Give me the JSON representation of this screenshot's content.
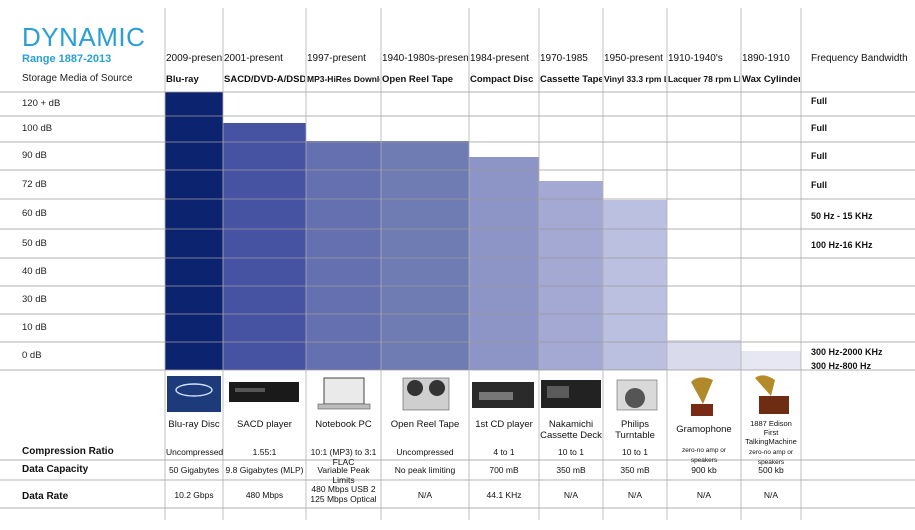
{
  "header": {
    "title": "DYNAMIC",
    "subtitle": "Range 1887-2013",
    "storage_label": "Storage Media of Source",
    "bandwidth_label": "Frequency Bandwidth"
  },
  "chart_data": {
    "type": "bar",
    "title": "DYNAMIC",
    "subtitle": "Range 1887-2013",
    "y_tick_labels": [
      "120 + dB",
      "100 dB",
      "90 dB",
      "72 dB",
      "60 dB",
      "50 dB",
      "40 dB",
      "30 dB",
      "10 dB",
      "0 dB"
    ],
    "categories": [
      "Blu-ray",
      "SACD/DVD-A/DSD",
      "MP3-HiRes Download",
      "Open Reel Tape",
      "Compact Disc",
      "Cassette Tape",
      "Vinyl 33.3 rpm LPs",
      "Lacquer 78 rpm LPs",
      "Wax Cylinder"
    ],
    "eras": [
      "2009-present",
      "2001-present",
      "1997-present",
      "1940-1980s-present",
      "1984-present",
      "1970-1985",
      "1950-present",
      "1910-1940's",
      "1890-1910"
    ],
    "values": [
      120,
      100,
      90,
      90,
      85,
      70,
      60,
      0,
      0
    ],
    "value_heights_note": "",
    "bar_colors": [
      "#0c2470",
      "#4652a2",
      "#6470af",
      "#6f7bb3",
      "#8c95c6",
      "#a3a9d3",
      "#bcc0e0",
      "#d9dbed",
      "#e6e7f3"
    ],
    "bandwidth": [
      {
        "tick": "120 + dB",
        "text": "Full"
      },
      {
        "tick": "100 dB",
        "text": "Full"
      },
      {
        "tick": "90 dB",
        "text": "Full"
      },
      {
        "tick": "72 dB",
        "text": "Full"
      },
      {
        "tick": "60 dB",
        "text": "50 Hz - 15 KHz"
      },
      {
        "tick": "50 dB",
        "text": "100 Hz-16 KHz"
      },
      {
        "tick": "0 dB",
        "text": "300 Hz-2000 KHz"
      },
      {
        "tick": "0 dB",
        "text": "300 Hz-800 Hz"
      }
    ]
  },
  "devices": [
    "Blu-ray Disc",
    "SACD player",
    "Notebook PC",
    "Open Reel Tape",
    "1st CD player",
    "Nakamichi Cassette Deck",
    "Philips Turntable",
    "Gramophone",
    "1887 Edison First TalkingMachine"
  ],
  "rows": {
    "compression": {
      "label": "Compression Ratio",
      "values": [
        "Uncompressed",
        "1.55:1",
        "10:1 (MP3) to 3:1 FLAC",
        "Uncompressed",
        "4 to 1",
        "10 to 1",
        "10 to 1",
        "zero-no amp or speakers",
        "zero-no amp or speakers"
      ]
    },
    "capacity": {
      "label": "Data Capacity",
      "values": [
        "50 Gigabytes",
        "9.8 Gigabytes (MLP)",
        "Variable Peak Limits",
        "No peak limiting",
        "700 mB",
        "350 mB",
        "350 mB",
        "900 kb",
        "500 kb"
      ]
    },
    "rate": {
      "label": "Data Rate",
      "values": [
        "10.2 Gbps",
        "480 Mbps",
        "480 Mbps USB 2 125 Mbps Optical",
        "N/A",
        "44.1 KHz",
        "N/A",
        "N/A",
        "N/A",
        "N/A"
      ]
    }
  }
}
